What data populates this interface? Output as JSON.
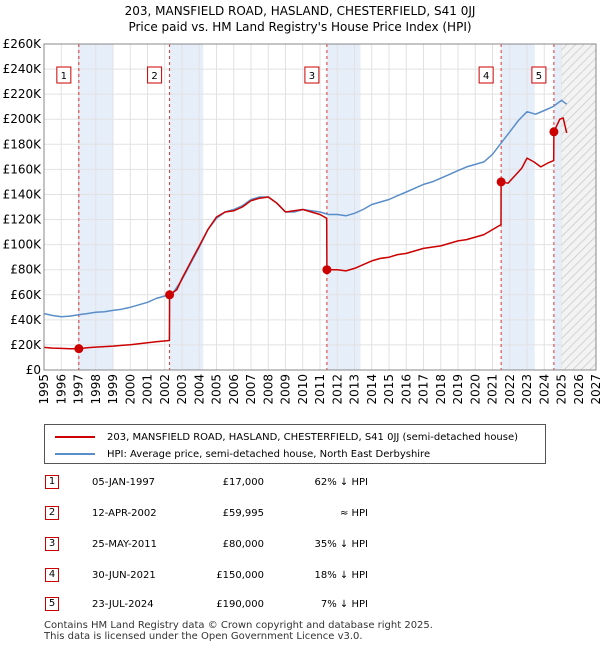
{
  "title_line1": "203, MANSFIELD ROAD, HASLAND, CHESTERFIELD, S41 0JJ",
  "title_line2": "Price paid vs. HM Land Registry's House Price Index (HPI)",
  "chart_data": {
    "type": "line",
    "xlim": [
      1995,
      2027
    ],
    "ylim": [
      0,
      260000
    ],
    "x_ticks": [
      1995,
      1996,
      1997,
      1998,
      1999,
      2000,
      2001,
      2002,
      2003,
      2004,
      2005,
      2006,
      2007,
      2008,
      2009,
      2010,
      2011,
      2012,
      2013,
      2014,
      2015,
      2016,
      2017,
      2018,
      2019,
      2020,
      2021,
      2022,
      2023,
      2024,
      2025,
      2026,
      2027
    ],
    "y_ticks": [
      {
        "value": 0,
        "label": "£0"
      },
      {
        "value": 20000,
        "label": "£20K"
      },
      {
        "value": 40000,
        "label": "£40K"
      },
      {
        "value": 60000,
        "label": "£60K"
      },
      {
        "value": 80000,
        "label": "£80K"
      },
      {
        "value": 100000,
        "label": "£100K"
      },
      {
        "value": 120000,
        "label": "£120K"
      },
      {
        "value": 140000,
        "label": "£140K"
      },
      {
        "value": 160000,
        "label": "£160K"
      },
      {
        "value": 180000,
        "label": "£180K"
      },
      {
        "value": 200000,
        "label": "£200K"
      },
      {
        "value": 220000,
        "label": "£220K"
      },
      {
        "value": 240000,
        "label": "£240K"
      },
      {
        "value": 260000,
        "label": "£260K"
      }
    ],
    "future_from": 2025.0,
    "series": [
      {
        "name": "203, MANSFIELD ROAD, HASLAND, CHESTERFIELD, S41 0JJ (semi-detached house)",
        "color": "#cc0000",
        "points": [
          [
            1995.0,
            18000
          ],
          [
            1995.5,
            17500
          ],
          [
            1996.0,
            17200
          ],
          [
            1996.5,
            17000
          ],
          [
            1997.02,
            17000
          ],
          [
            1997.5,
            17800
          ],
          [
            1998.0,
            18300
          ],
          [
            1998.5,
            18700
          ],
          [
            1999.0,
            19100
          ],
          [
            1999.5,
            19600
          ],
          [
            2000.0,
            20200
          ],
          [
            2000.5,
            21000
          ],
          [
            2001.0,
            21800
          ],
          [
            2001.5,
            22600
          ],
          [
            2002.27,
            23500
          ],
          [
            2002.28,
            59995
          ],
          [
            2002.7,
            64000
          ],
          [
            2003.0,
            73000
          ],
          [
            2003.5,
            86000
          ],
          [
            2004.0,
            99000
          ],
          [
            2004.5,
            112000
          ],
          [
            2005.0,
            122000
          ],
          [
            2005.5,
            126000
          ],
          [
            2006.0,
            127000
          ],
          [
            2006.5,
            130000
          ],
          [
            2007.0,
            135000
          ],
          [
            2007.5,
            137000
          ],
          [
            2008.0,
            138000
          ],
          [
            2008.5,
            133000
          ],
          [
            2009.0,
            126000
          ],
          [
            2009.5,
            127000
          ],
          [
            2010.0,
            128000
          ],
          [
            2010.5,
            126000
          ],
          [
            2011.0,
            124000
          ],
          [
            2011.39,
            121000
          ],
          [
            2011.4,
            80000
          ],
          [
            2012.0,
            80000
          ],
          [
            2012.5,
            79000
          ],
          [
            2013.0,
            81000
          ],
          [
            2013.5,
            84000
          ],
          [
            2014.0,
            87000
          ],
          [
            2014.5,
            89000
          ],
          [
            2015.0,
            90000
          ],
          [
            2015.5,
            92000
          ],
          [
            2016.0,
            93000
          ],
          [
            2016.5,
            95000
          ],
          [
            2017.0,
            97000
          ],
          [
            2017.5,
            98000
          ],
          [
            2018.0,
            99000
          ],
          [
            2018.5,
            101000
          ],
          [
            2019.0,
            103000
          ],
          [
            2019.5,
            104000
          ],
          [
            2020.0,
            106000
          ],
          [
            2020.5,
            108000
          ],
          [
            2021.0,
            112000
          ],
          [
            2021.49,
            116000
          ],
          [
            2021.5,
            150000
          ],
          [
            2021.9,
            149000
          ],
          [
            2022.3,
            155000
          ],
          [
            2022.7,
            161000
          ],
          [
            2023.0,
            169000
          ],
          [
            2023.4,
            166000
          ],
          [
            2023.8,
            162000
          ],
          [
            2024.2,
            165000
          ],
          [
            2024.55,
            167000
          ],
          [
            2024.56,
            190000
          ],
          [
            2024.9,
            200000
          ],
          [
            2025.1,
            201000
          ],
          [
            2025.3,
            189000
          ]
        ]
      },
      {
        "name": "HPI: Average price, semi-detached house, North East Derbyshire",
        "color": "#5a8ec8",
        "points": [
          [
            1995.0,
            45000
          ],
          [
            1995.5,
            43500
          ],
          [
            1996.0,
            42500
          ],
          [
            1996.5,
            43000
          ],
          [
            1997.0,
            44000
          ],
          [
            1997.5,
            45000
          ],
          [
            1998.0,
            46000
          ],
          [
            1998.5,
            46500
          ],
          [
            1999.0,
            47500
          ],
          [
            1999.5,
            48500
          ],
          [
            2000.0,
            50000
          ],
          [
            2000.5,
            52000
          ],
          [
            2001.0,
            54000
          ],
          [
            2001.5,
            57000
          ],
          [
            2002.0,
            59000
          ],
          [
            2002.5,
            62000
          ],
          [
            2003.0,
            72000
          ],
          [
            2003.5,
            85000
          ],
          [
            2004.0,
            98000
          ],
          [
            2004.5,
            112000
          ],
          [
            2005.0,
            121000
          ],
          [
            2005.5,
            126000
          ],
          [
            2006.0,
            128000
          ],
          [
            2006.5,
            131000
          ],
          [
            2007.0,
            136000
          ],
          [
            2007.5,
            138000
          ],
          [
            2008.0,
            138000
          ],
          [
            2008.5,
            133000
          ],
          [
            2009.0,
            126000
          ],
          [
            2009.5,
            126000
          ],
          [
            2010.0,
            128000
          ],
          [
            2010.5,
            127000
          ],
          [
            2011.0,
            126000
          ],
          [
            2011.5,
            124000
          ],
          [
            2012.0,
            124000
          ],
          [
            2012.5,
            123000
          ],
          [
            2013.0,
            125000
          ],
          [
            2013.5,
            128000
          ],
          [
            2014.0,
            132000
          ],
          [
            2014.5,
            134000
          ],
          [
            2015.0,
            136000
          ],
          [
            2015.5,
            139000
          ],
          [
            2016.0,
            142000
          ],
          [
            2016.5,
            145000
          ],
          [
            2017.0,
            148000
          ],
          [
            2017.5,
            150000
          ],
          [
            2018.0,
            153000
          ],
          [
            2018.5,
            156000
          ],
          [
            2019.0,
            159000
          ],
          [
            2019.5,
            162000
          ],
          [
            2020.0,
            164000
          ],
          [
            2020.5,
            166000
          ],
          [
            2021.0,
            172000
          ],
          [
            2021.5,
            181000
          ],
          [
            2022.0,
            190000
          ],
          [
            2022.5,
            199000
          ],
          [
            2023.0,
            206000
          ],
          [
            2023.5,
            204000
          ],
          [
            2024.0,
            207000
          ],
          [
            2024.5,
            210000
          ],
          [
            2025.0,
            215000
          ],
          [
            2025.3,
            212000
          ]
        ]
      }
    ],
    "sales": [
      {
        "id": "1",
        "x": 1997.02,
        "price": 17000
      },
      {
        "id": "2",
        "x": 2002.28,
        "price": 59995
      },
      {
        "id": "3",
        "x": 2011.4,
        "price": 80000
      },
      {
        "id": "4",
        "x": 2021.5,
        "price": 150000
      },
      {
        "id": "5",
        "x": 2024.56,
        "price": 190000
      }
    ]
  },
  "legend": {
    "property_label": "203, MANSFIELD ROAD, HASLAND, CHESTERFIELD, S41 0JJ (semi-detached house)",
    "hpi_label": "HPI: Average price, semi-detached house, North East Derbyshire",
    "property_color": "#cc0000",
    "hpi_color": "#5a8ec8"
  },
  "sales_table": [
    {
      "num": "1",
      "date": "05-JAN-1997",
      "price": "£17,000",
      "hpi": "62% ↓ HPI"
    },
    {
      "num": "2",
      "date": "12-APR-2002",
      "price": "£59,995",
      "hpi": "≈ HPI"
    },
    {
      "num": "3",
      "date": "25-MAY-2011",
      "price": "£80,000",
      "hpi": "35% ↓ HPI"
    },
    {
      "num": "4",
      "date": "30-JUN-2021",
      "price": "£150,000",
      "hpi": "18% ↓ HPI"
    },
    {
      "num": "5",
      "date": "23-JUL-2024",
      "price": "£190,000",
      "hpi": "7% ↓ HPI"
    }
  ],
  "footer_line1": "Contains HM Land Registry data © Crown copyright and database right 2025.",
  "footer_line2": "This data is licensed under the Open Government Licence v3.0."
}
